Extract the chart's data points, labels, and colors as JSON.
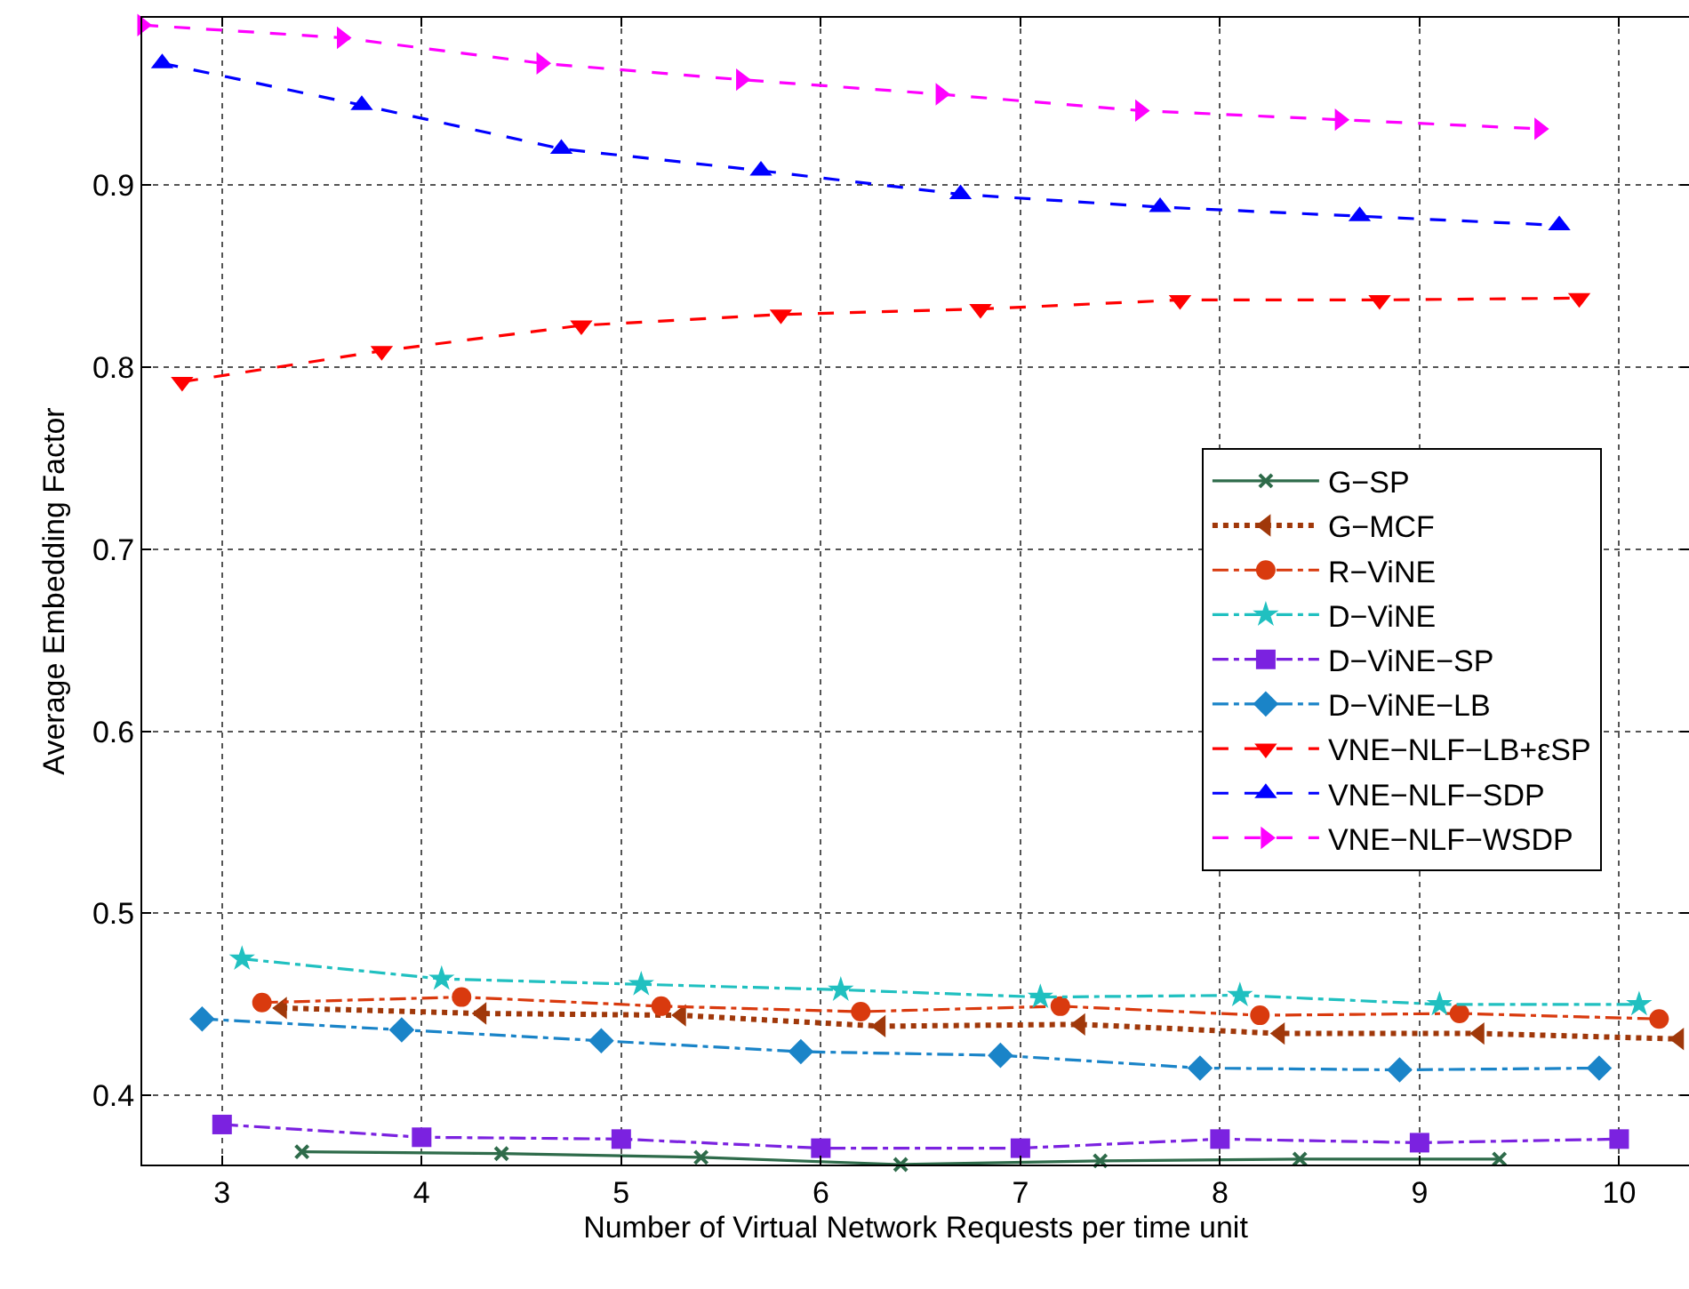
{
  "chart_data": {
    "type": "line",
    "xlabel": "Number of Virtual Network Requests per time unit",
    "ylabel": "Average Embedding Factor",
    "xlim": [
      2.6,
      10.35
    ],
    "ylim": [
      0.362,
      0.992
    ],
    "xticks": [
      3,
      4,
      5,
      6,
      7,
      8,
      9,
      10
    ],
    "yticks": [
      0.4,
      0.5,
      0.6,
      0.7,
      0.8,
      0.9
    ],
    "grid": true,
    "legend": "right",
    "series": [
      {
        "name": "G−SP",
        "color": "#2e6b4a",
        "marker": "cross",
        "line_style": "solid",
        "x": [
          3.4,
          4.4,
          5.4,
          6.4,
          7.4,
          8.4,
          9.4
        ],
        "values": [
          0.369,
          0.368,
          0.366,
          0.362,
          0.364,
          0.365,
          0.365
        ]
      },
      {
        "name": "G−MCF",
        "color": "#a0380a",
        "marker": "triangle-left",
        "line_style": "dotted",
        "x": [
          3.3,
          4.3,
          5.3,
          6.3,
          7.3,
          8.3,
          9.3,
          10.3
        ],
        "values": [
          0.448,
          0.445,
          0.444,
          0.438,
          0.439,
          0.434,
          0.434,
          0.431
        ]
      },
      {
        "name": "R−ViNE",
        "color": "#d93a0e",
        "marker": "circle",
        "line_style": "dashdot",
        "x": [
          3.2,
          4.2,
          5.2,
          6.2,
          7.2,
          8.2,
          9.2,
          10.2
        ],
        "values": [
          0.451,
          0.454,
          0.449,
          0.446,
          0.449,
          0.444,
          0.445,
          0.442
        ]
      },
      {
        "name": "D−ViNE",
        "color": "#20c0c0",
        "marker": "star",
        "line_style": "dashdot",
        "x": [
          3.1,
          4.1,
          5.1,
          6.1,
          7.1,
          8.1,
          9.1,
          10.1
        ],
        "values": [
          0.475,
          0.464,
          0.461,
          0.458,
          0.454,
          0.455,
          0.45,
          0.45
        ]
      },
      {
        "name": "D−ViNE−SP",
        "color": "#7b22e0",
        "marker": "square",
        "line_style": "dashdot",
        "x": [
          3,
          4,
          5,
          6,
          7,
          8,
          9,
          10
        ],
        "values": [
          0.384,
          0.377,
          0.376,
          0.371,
          0.371,
          0.376,
          0.374,
          0.376
        ]
      },
      {
        "name": "D−ViNE−LB",
        "color": "#1a84c8",
        "marker": "diamond",
        "line_style": "dashdot",
        "x": [
          2.9,
          3.9,
          4.9,
          5.9,
          6.9,
          7.9,
          8.9,
          9.9
        ],
        "values": [
          0.442,
          0.436,
          0.43,
          0.424,
          0.422,
          0.415,
          0.414,
          0.415
        ]
      },
      {
        "name": "VNE−NLF−LB+εSP",
        "color": "#ff0000",
        "marker": "triangle-down",
        "line_style": "dashed",
        "x": [
          2.8,
          3.8,
          4.8,
          5.8,
          6.8,
          7.8,
          8.8,
          9.8
        ],
        "values": [
          0.792,
          0.809,
          0.823,
          0.829,
          0.832,
          0.837,
          0.837,
          0.838
        ]
      },
      {
        "name": "VNE−NLF−SDP",
        "color": "#0000ff",
        "marker": "triangle-up",
        "line_style": "dashed",
        "x": [
          2.7,
          3.7,
          4.7,
          5.7,
          6.7,
          7.7,
          8.7,
          9.7
        ],
        "values": [
          0.967,
          0.944,
          0.92,
          0.908,
          0.895,
          0.888,
          0.883,
          0.878
        ]
      },
      {
        "name": "VNE−NLF−WSDP",
        "color": "#ff00ff",
        "marker": "triangle-right",
        "line_style": "dashed",
        "x": [
          2.6,
          3.6,
          4.6,
          5.6,
          6.6,
          7.6,
          8.6,
          9.6
        ],
        "values": [
          0.988,
          0.981,
          0.967,
          0.958,
          0.95,
          0.941,
          0.936,
          0.931
        ]
      }
    ]
  }
}
